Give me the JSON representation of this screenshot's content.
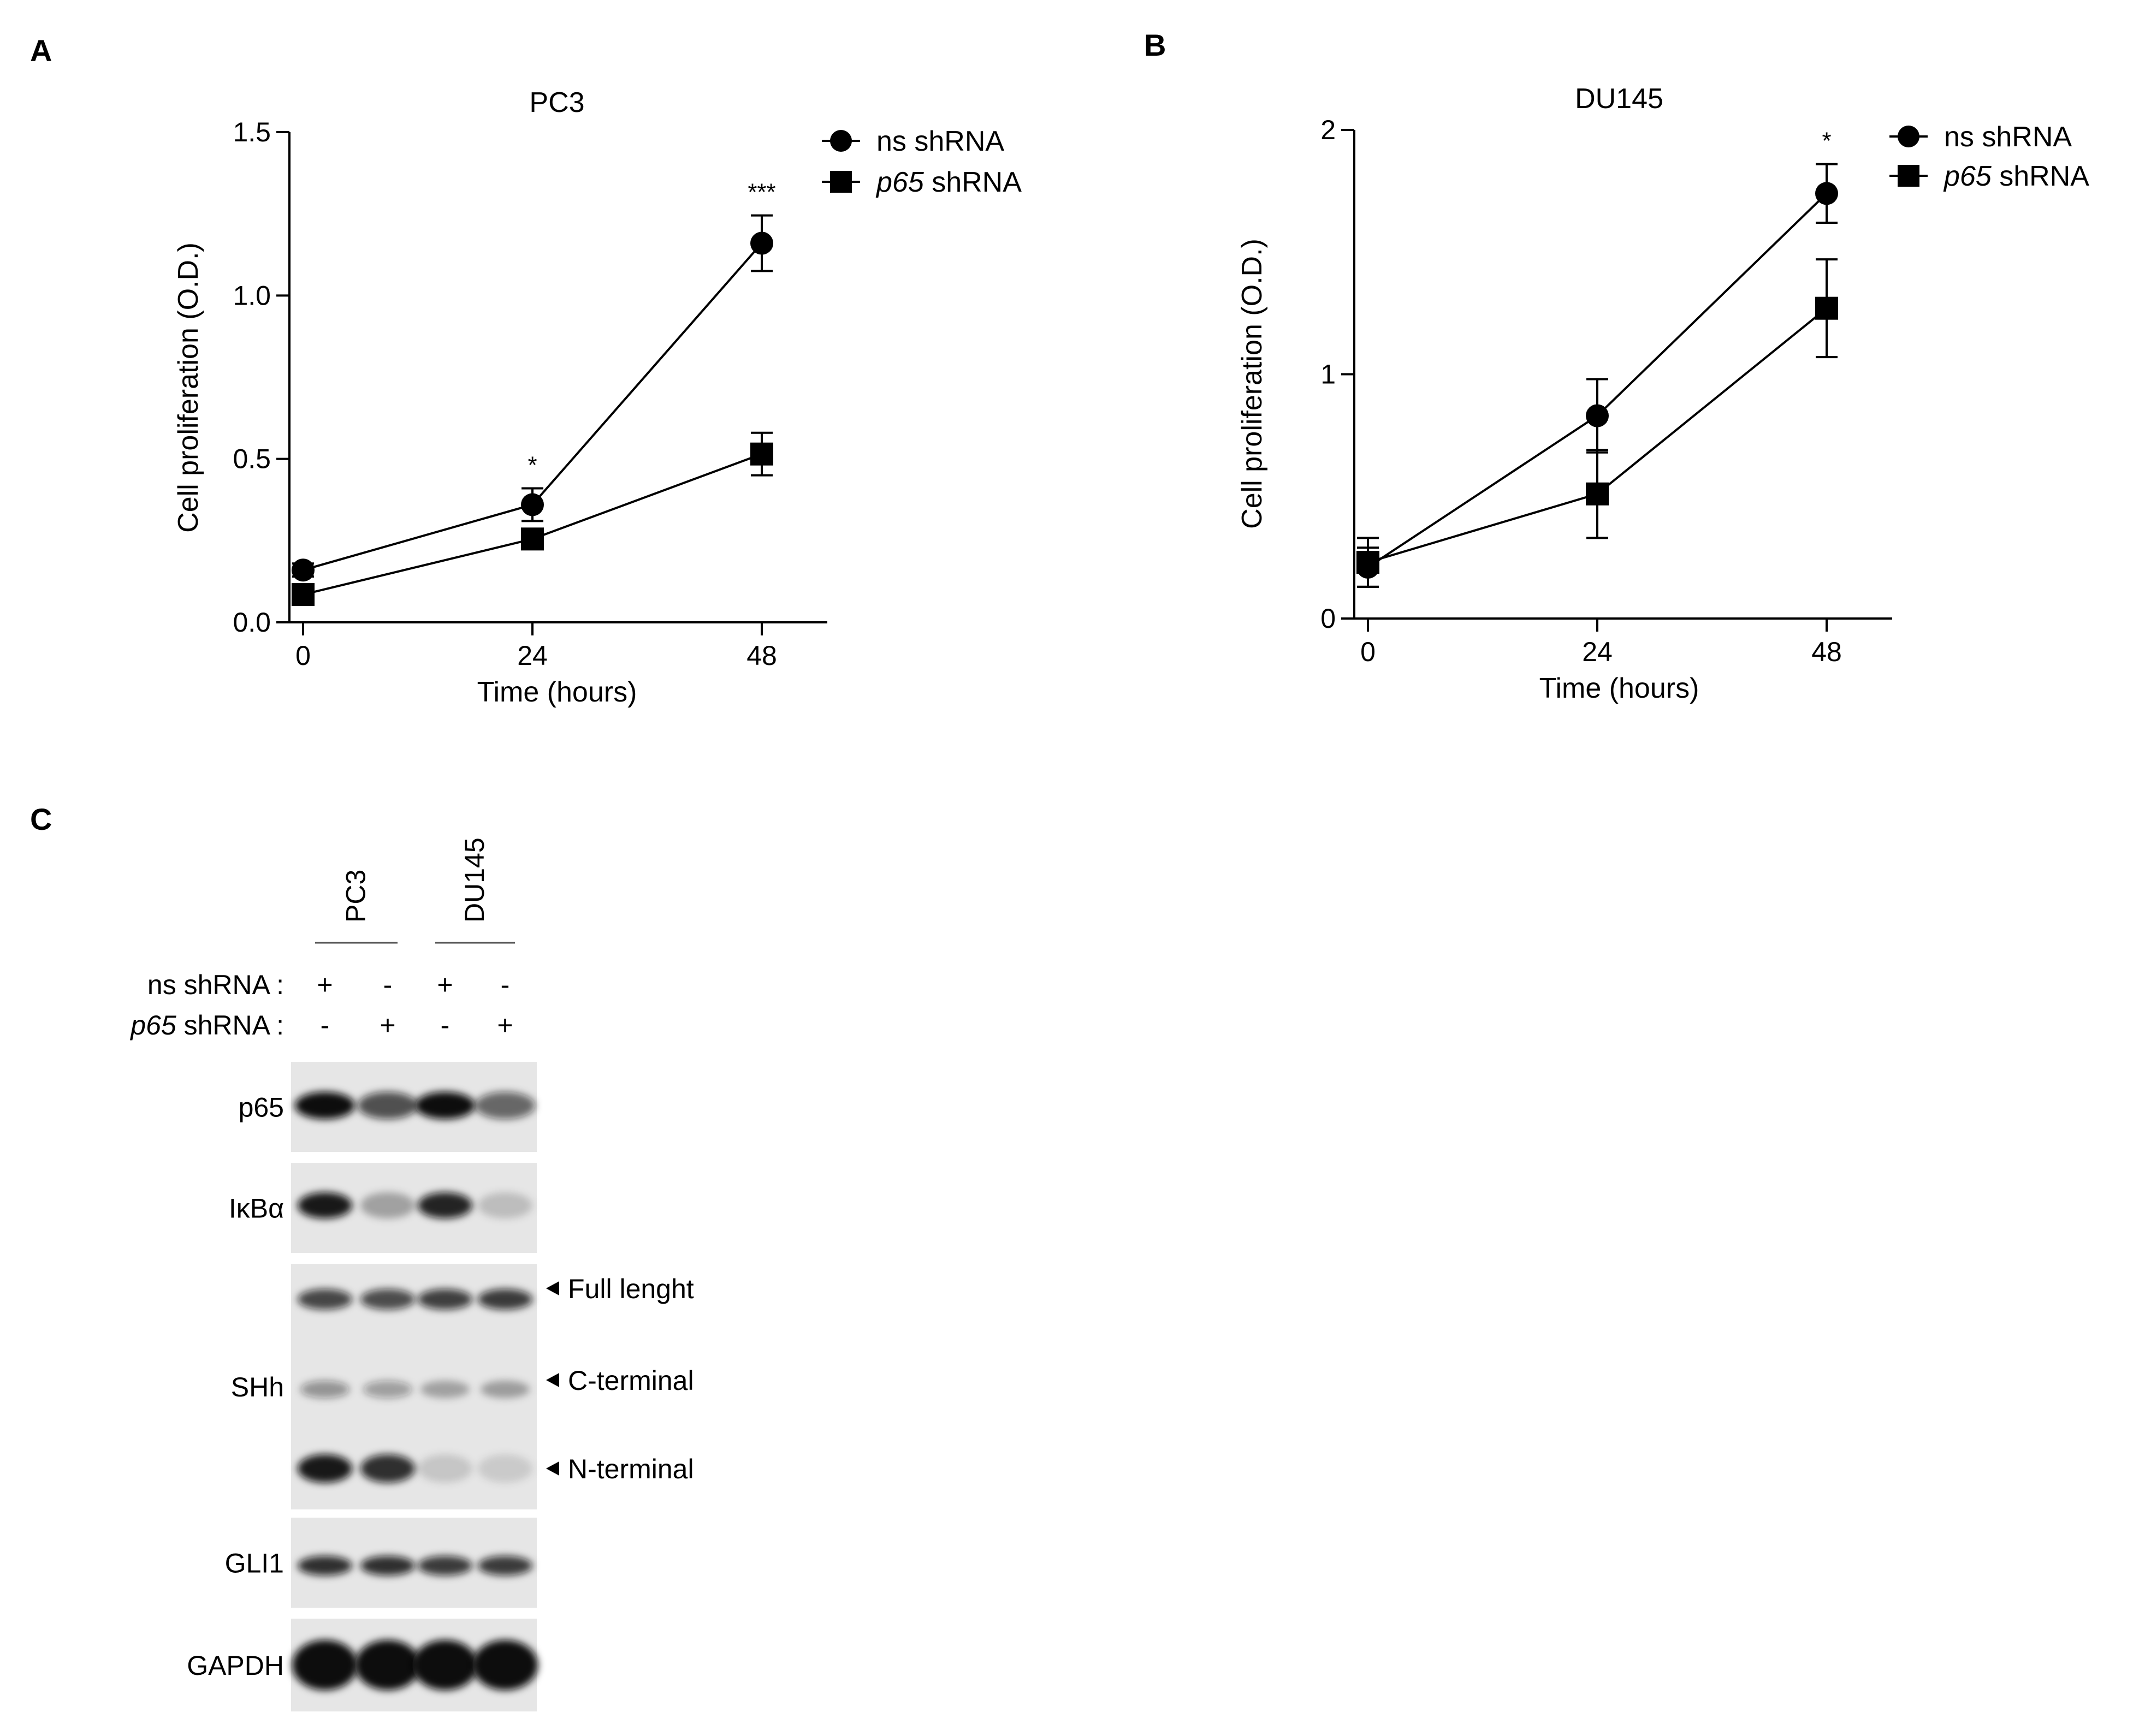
{
  "panels": {
    "a": "A",
    "b": "B",
    "c": "C"
  },
  "chart_data": [
    {
      "type": "line",
      "title": "PC3",
      "xlabel": "Time (hours)",
      "ylabel": "Cell proliferation (O.D.)",
      "x": [
        0,
        24,
        48
      ],
      "xticks": [
        "0",
        "24",
        "48"
      ],
      "yticks": [
        "0.0",
        "0.5",
        "1.0",
        "1.5"
      ],
      "ylim": [
        0,
        1.5
      ],
      "series": [
        {
          "name": "ns shRNA",
          "marker": "circle",
          "values": [
            0.16,
            0.36,
            1.16
          ],
          "errors": [
            0.02,
            0.05,
            0.085
          ]
        },
        {
          "name": "p65 shRNA",
          "name_italic": "p65",
          "name_rest": " shRNA",
          "marker": "square",
          "values": [
            0.085,
            0.255,
            0.515
          ],
          "errors": [
            0.01,
            0.03,
            0.065
          ]
        }
      ],
      "annotations": [
        {
          "x": 24,
          "text": "*"
        },
        {
          "x": 48,
          "text": "***"
        }
      ],
      "legend": "top-right"
    },
    {
      "type": "line",
      "title": "DU145",
      "xlabel": "Time (hours)",
      "ylabel": "Cell proliferation (O.D.)",
      "x": [
        0,
        24,
        48
      ],
      "xticks": [
        "0",
        "24",
        "48"
      ],
      "yticks": [
        "0",
        "1",
        "2"
      ],
      "ylim": [
        0,
        2
      ],
      "series": [
        {
          "name": "ns shRNA",
          "marker": "circle",
          "values": [
            0.21,
            0.83,
            1.74
          ],
          "errors": [
            0.08,
            0.15,
            0.12
          ]
        },
        {
          "name": "p65 shRNA",
          "name_italic": "p65",
          "name_rest": " shRNA",
          "marker": "square",
          "values": [
            0.23,
            0.51,
            1.27
          ],
          "errors": [
            0.1,
            0.18,
            0.2
          ]
        }
      ],
      "annotations": [
        {
          "x": 48,
          "text": "*"
        }
      ],
      "legend": "top-right"
    }
  ],
  "blot": {
    "cell_lines": [
      "PC3",
      "DU145"
    ],
    "conditions": [
      {
        "label": "ns shRNA :",
        "label_italic": "",
        "label_rest": "ns shRNA :",
        "signs": [
          "+",
          "-",
          "+",
          "-"
        ]
      },
      {
        "label": "p65 shRNA :",
        "label_italic": "p65",
        "label_rest": " shRNA :",
        "signs": [
          "-",
          "+",
          "-",
          "+"
        ]
      }
    ],
    "rows": [
      {
        "name": "p65"
      },
      {
        "name": "IκBα"
      },
      {
        "name": "SHh"
      },
      {
        "name": "GLI1"
      },
      {
        "name": "GAPDH"
      }
    ],
    "band_annotations": [
      "Full lenght",
      "C-terminal",
      "N-terminal"
    ]
  }
}
